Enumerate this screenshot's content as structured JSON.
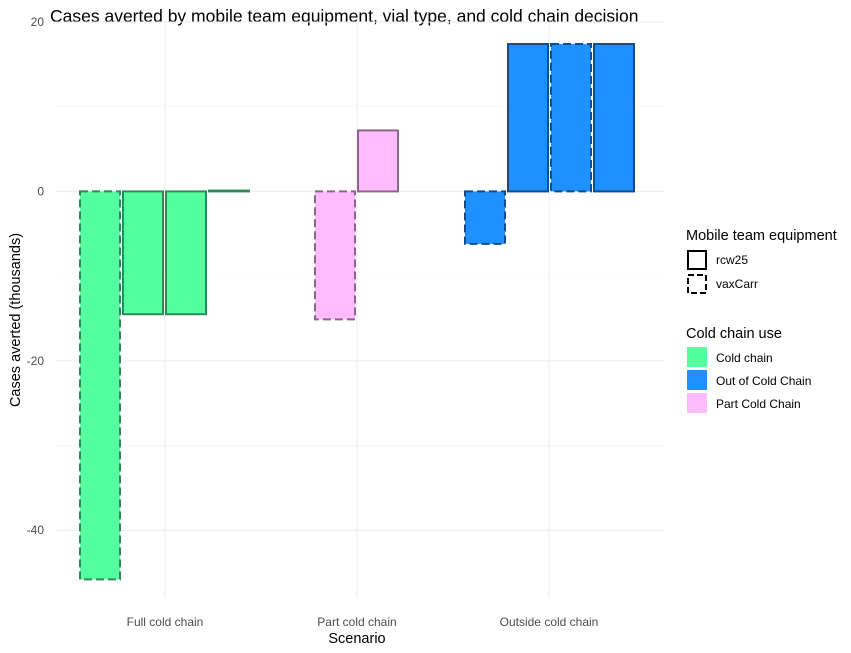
{
  "chart_data": {
    "type": "bar",
    "title": "Cases averted by mobile team equipment, vial type, and cold chain decision",
    "xlabel": "Scenario",
    "ylabel": "Cases averted (thousands)",
    "ylim": [
      -48,
      20
    ],
    "yticks": [
      -40,
      -20,
      0,
      20
    ],
    "grid": true,
    "categories": [
      "Full cold chain",
      "Part cold chain",
      "Outside cold chain"
    ],
    "bars": [
      {
        "category": "Full cold chain",
        "equipment": "vaxCarr",
        "cold_chain": "Cold chain",
        "value": -45.8
      },
      {
        "category": "Full cold chain",
        "equipment": "rcw25",
        "cold_chain": "Cold chain",
        "value": -14.5
      },
      {
        "category": "Full cold chain",
        "equipment": "rcw25",
        "cold_chain": "Cold chain",
        "value": -14.5
      },
      {
        "category": "Full cold chain",
        "equipment": "rcw25",
        "cold_chain": "Cold chain",
        "value": 0.1
      },
      {
        "category": "Part cold chain",
        "equipment": "vaxCarr",
        "cold_chain": "Part Cold Chain",
        "value": -15.1
      },
      {
        "category": "Part cold chain",
        "equipment": "rcw25",
        "cold_chain": "Part Cold Chain",
        "value": 7.2
      },
      {
        "category": "Outside cold chain",
        "equipment": "vaxCarr",
        "cold_chain": "Out of Cold Chain",
        "value": -6.2
      },
      {
        "category": "Outside cold chain",
        "equipment": "rcw25",
        "cold_chain": "Out of Cold Chain",
        "value": 17.4
      },
      {
        "category": "Outside cold chain",
        "equipment": "vaxCarr",
        "cold_chain": "Out of Cold Chain",
        "value": 17.4
      },
      {
        "category": "Outside cold chain",
        "equipment": "rcw25",
        "cold_chain": "Out of Cold Chain",
        "value": 17.4
      }
    ],
    "legends": {
      "placement": "right",
      "equipment": {
        "title": "Mobile team equipment",
        "items": [
          {
            "label": "rcw25",
            "linetype": "solid"
          },
          {
            "label": "vaxCarr",
            "linetype": "dashed"
          }
        ]
      },
      "cold_chain": {
        "title": "Cold chain use",
        "items": [
          {
            "label": "Cold chain",
            "fill": "#54ff9f",
            "stroke": "#2e8b57"
          },
          {
            "label": "Out of Cold Chain",
            "fill": "#1e90ff",
            "stroke": "#104e8b"
          },
          {
            "label": "Part Cold Chain",
            "fill": "#ffbbff",
            "stroke": "#8b668b"
          }
        ]
      }
    }
  }
}
